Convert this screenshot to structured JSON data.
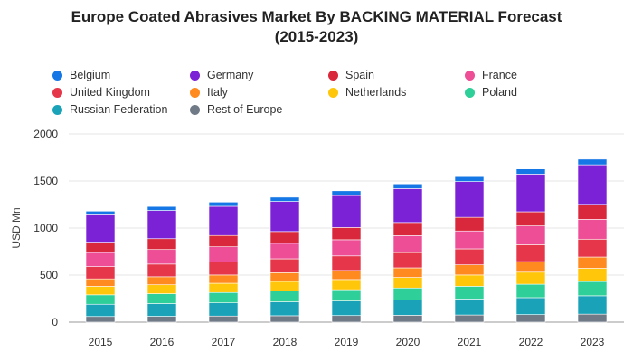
{
  "chart_data": {
    "type": "bar",
    "stacked": true,
    "title_line1": "Europe Coated Abrasives Market By BACKING MATERIAL Forecast",
    "title_line2": "(2015-2023)",
    "xlabel": "",
    "ylabel": "USD Mn",
    "ylim": [
      0,
      2000
    ],
    "yticks": [
      "0",
      "500",
      "1000",
      "1500",
      "2000"
    ],
    "grid": true,
    "legend_position": "top",
    "categories": [
      "2015",
      "2016",
      "2017",
      "2018",
      "2019",
      "2020",
      "2021",
      "2022",
      "2023"
    ],
    "series": [
      {
        "name": "Rest of Europe",
        "color": "#707a87",
        "values": [
          60,
          62,
          65,
          68,
          70,
          73,
          76,
          80,
          85
        ]
      },
      {
        "name": "Russian Federation",
        "color": "#1aa3b8",
        "values": [
          130,
          135,
          140,
          148,
          155,
          162,
          170,
          180,
          195
        ]
      },
      {
        "name": "Poland",
        "color": "#2ecf98",
        "values": [
          100,
          105,
          110,
          115,
          120,
          128,
          135,
          143,
          152
        ]
      },
      {
        "name": "Netherlands",
        "color": "#ffc60a",
        "values": [
          90,
          95,
          98,
          102,
          108,
          112,
          120,
          128,
          140
        ]
      },
      {
        "name": "Italy",
        "color": "#ff8a1f",
        "values": [
          80,
          85,
          88,
          92,
          96,
          102,
          108,
          112,
          120
        ]
      },
      {
        "name": "United Kingdom",
        "color": "#e5364a",
        "values": [
          130,
          135,
          140,
          148,
          155,
          162,
          170,
          180,
          190
        ]
      },
      {
        "name": "France",
        "color": "#ed4e96",
        "values": [
          150,
          155,
          160,
          165,
          172,
          180,
          190,
          200,
          210
        ]
      },
      {
        "name": "Spain",
        "color": "#d9283c",
        "values": [
          110,
          115,
          120,
          125,
          130,
          140,
          145,
          150,
          160
        ]
      },
      {
        "name": "Germany",
        "color": "#7b22d6",
        "values": [
          290,
          300,
          310,
          320,
          340,
          360,
          380,
          400,
          420
        ]
      },
      {
        "name": "Belgium",
        "color": "#1577e6",
        "values": [
          40,
          42,
          45,
          45,
          50,
          50,
          52,
          55,
          60
        ]
      }
    ]
  },
  "legend": [
    {
      "name": "Belgium",
      "color": "#1577e6"
    },
    {
      "name": "Germany",
      "color": "#7b22d6"
    },
    {
      "name": "Spain",
      "color": "#d9283c"
    },
    {
      "name": "France",
      "color": "#ed4e96"
    },
    {
      "name": "United Kingdom",
      "color": "#e5364a"
    },
    {
      "name": "Italy",
      "color": "#ff8a1f"
    },
    {
      "name": "Netherlands",
      "color": "#ffc60a"
    },
    {
      "name": "Poland",
      "color": "#2ecf98"
    },
    {
      "name": "Russian Federation",
      "color": "#1aa3b8"
    },
    {
      "name": "Rest of Europe",
      "color": "#707a87"
    }
  ]
}
